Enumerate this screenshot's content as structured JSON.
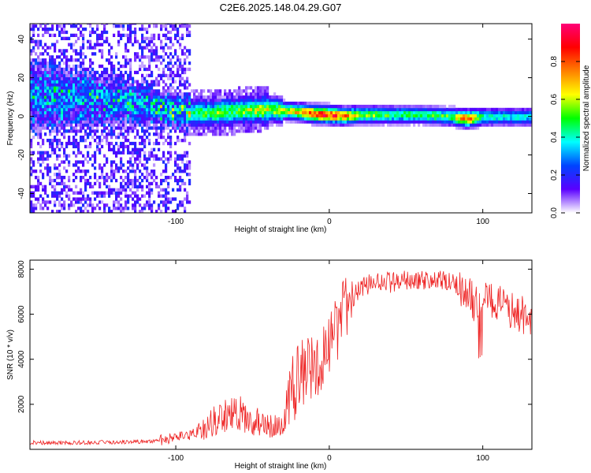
{
  "title": "C2E6.2025.148.04.29.G07",
  "chart_data": [
    {
      "type": "heatmap",
      "xlabel": "Height of straight line (km)",
      "ylabel": "Frequency (Hz)",
      "xlim": [
        -195,
        132
      ],
      "ylim": [
        -50,
        48
      ],
      "x_ticks": [
        -100,
        0,
        100
      ],
      "x_tick_labels": [
        "-100",
        "0",
        "100"
      ],
      "y_ticks": [
        -40,
        -20,
        0,
        20,
        40
      ],
      "y_tick_labels": [
        "-40",
        "-20",
        "0",
        "20",
        "40"
      ],
      "grid": false,
      "colorbar": {
        "label": "Normalized spectral amplitude",
        "range": [
          0,
          1
        ],
        "ticks": [
          0.0,
          0.2,
          0.4,
          0.6,
          0.8
        ],
        "tick_labels": [
          "0.0",
          "0.2",
          "0.4",
          "0.6",
          "0.8"
        ],
        "colormap": [
          "#ffffff",
          "#5a00ff",
          "#0044ff",
          "#00ffff",
          "#00ff00",
          "#ffff00",
          "#ff7f00",
          "#ff0000",
          "#ff0077"
        ]
      },
      "ridge": {
        "x": [
          -195,
          -150,
          -120,
          -100,
          -80,
          -60,
          -40,
          -20,
          -10,
          0,
          10,
          20,
          40,
          60,
          80,
          90,
          100,
          132
        ],
        "center_freq_hz": [
          10,
          8,
          5,
          2,
          1,
          2,
          3,
          1.5,
          0.5,
          0,
          -0.5,
          0,
          0,
          0,
          -1,
          -2,
          -1,
          -1
        ],
        "peak_amplitude": [
          0.28,
          0.28,
          0.32,
          0.42,
          0.48,
          0.5,
          0.58,
          0.72,
          0.88,
          0.95,
          0.78,
          0.62,
          0.52,
          0.5,
          0.55,
          0.9,
          0.45,
          0.4
        ]
      }
    },
    {
      "type": "line",
      "xlabel": "Height of straight line (km)",
      "ylabel": "SNR (10 * v/v)",
      "xlim": [
        -195,
        132
      ],
      "ylim": [
        0,
        8400
      ],
      "x_ticks": [
        -100,
        0,
        100
      ],
      "x_tick_labels": [
        "-100",
        "0",
        "100"
      ],
      "y_ticks": [
        2000,
        4000,
        6000,
        8000
      ],
      "y_tick_labels": [
        "2000",
        "4000",
        "6000",
        "8000"
      ],
      "grid": false,
      "series": [
        {
          "color": "#ee2222",
          "x": [
            -195,
            -180,
            -160,
            -140,
            -120,
            -110,
            -100,
            -90,
            -80,
            -70,
            -60,
            -50,
            -40,
            -35,
            -30,
            -25,
            -20,
            -15,
            -10,
            -5,
            0,
            5,
            10,
            20,
            30,
            40,
            50,
            60,
            70,
            80,
            90,
            95,
            100,
            110,
            120,
            132
          ],
          "y": [
            300,
            300,
            300,
            320,
            350,
            400,
            500,
            650,
            1000,
            1500,
            1600,
            1300,
            1000,
            1000,
            1500,
            2500,
            3200,
            3600,
            3700,
            3900,
            4500,
            5300,
            6300,
            7100,
            7500,
            7400,
            7500,
            7500,
            7500,
            7400,
            7000,
            6400,
            6700,
            6500,
            6100,
            5800
          ]
        }
      ]
    }
  ]
}
